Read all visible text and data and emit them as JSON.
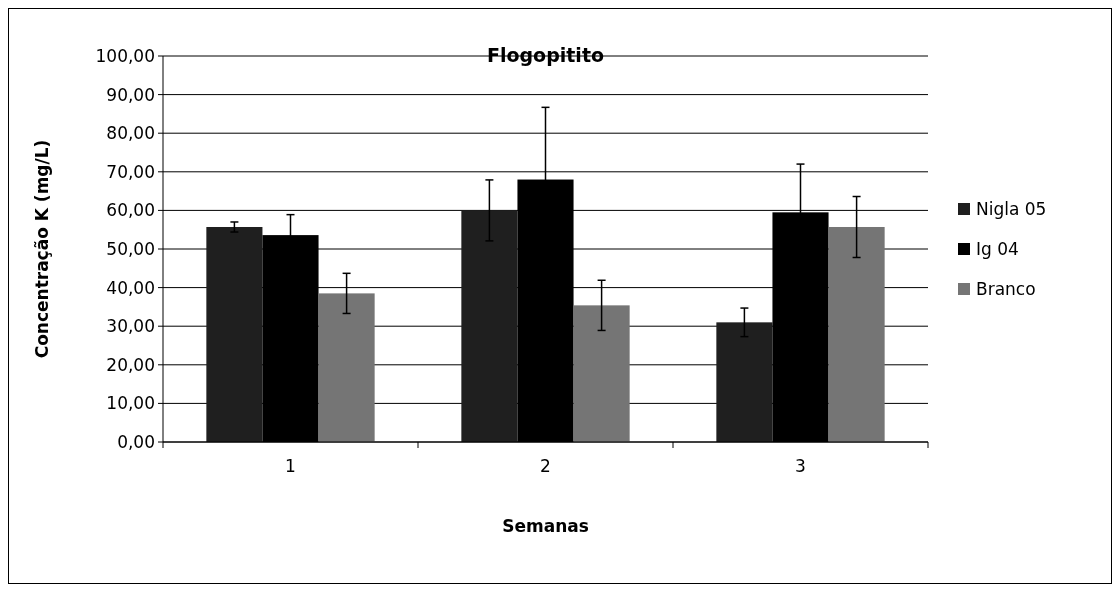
{
  "chart_data": {
    "type": "bar",
    "title": "Flogopitito",
    "xlabel": "Semanas",
    "ylabel": "Concentração K (mg/L)",
    "categories": [
      "1",
      "2",
      "3"
    ],
    "series": [
      {
        "name": "Nigla 05",
        "color": "#1f1f1f",
        "values": [
          55.7,
          60.0,
          31.0
        ],
        "errors": [
          1.3,
          7.9,
          3.7
        ]
      },
      {
        "name": "Ig 04",
        "color": "#000000",
        "values": [
          53.6,
          68.0,
          59.5
        ],
        "errors": [
          5.3,
          18.7,
          12.5
        ]
      },
      {
        "name": "Branco",
        "color": "#757575",
        "values": [
          38.5,
          35.4,
          55.7
        ],
        "errors": [
          5.2,
          6.5,
          7.9
        ]
      }
    ],
    "ylim": [
      0,
      100
    ],
    "yticks": [
      {
        "value": 0,
        "label": "0,00"
      },
      {
        "value": 10,
        "label": "10,00"
      },
      {
        "value": 20,
        "label": "20,00"
      },
      {
        "value": 30,
        "label": "30,00"
      },
      {
        "value": 40,
        "label": "40,00"
      },
      {
        "value": 50,
        "label": "50,00"
      },
      {
        "value": 60,
        "label": "60,00"
      },
      {
        "value": 70,
        "label": "70,00"
      },
      {
        "value": 80,
        "label": "80,00"
      },
      {
        "value": 90,
        "label": "90,00"
      },
      {
        "value": 100,
        "label": "100,00"
      }
    ],
    "grid": "y",
    "legend": "right"
  }
}
